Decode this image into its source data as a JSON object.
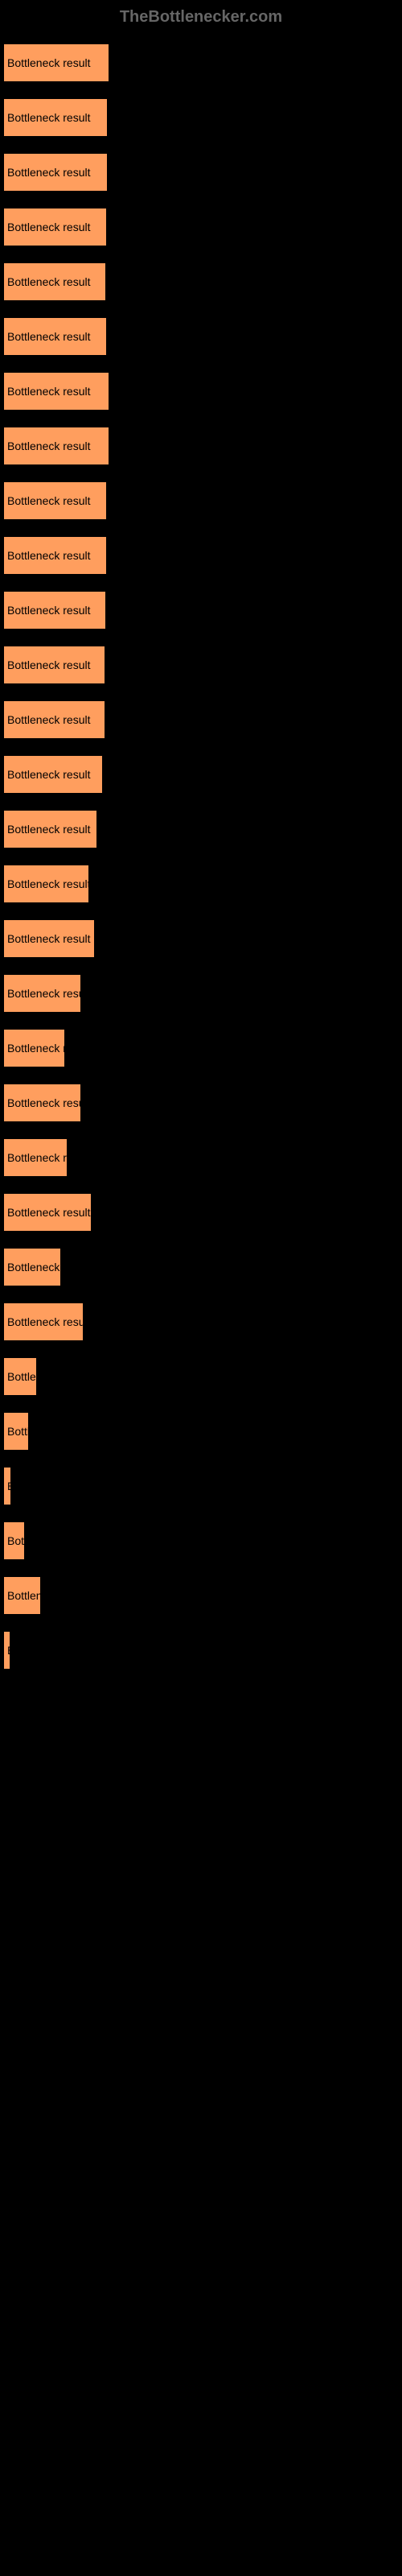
{
  "header": {
    "site_name": "TheBottlenecker.com"
  },
  "chart": {
    "type": "bar",
    "background_color": "#000000",
    "bar_color": "#ff9e5e",
    "label_color": "#000000",
    "header_color": "#666666",
    "max_width": 490,
    "bars": [
      {
        "label": "Bottleneck result",
        "width": 130
      },
      {
        "label": "Bottleneck result",
        "width": 128
      },
      {
        "label": "Bottleneck result",
        "width": 128
      },
      {
        "label": "Bottleneck result",
        "width": 127
      },
      {
        "label": "Bottleneck result",
        "width": 126
      },
      {
        "label": "Bottleneck result",
        "width": 127
      },
      {
        "label": "Bottleneck result",
        "width": 130
      },
      {
        "label": "Bottleneck result",
        "width": 130
      },
      {
        "label": "Bottleneck result",
        "width": 127
      },
      {
        "label": "Bottleneck result",
        "width": 127
      },
      {
        "label": "Bottleneck result",
        "width": 126
      },
      {
        "label": "Bottleneck result",
        "width": 125
      },
      {
        "label": "Bottleneck result",
        "width": 125
      },
      {
        "label": "Bottleneck result",
        "width": 122
      },
      {
        "label": "Bottleneck result",
        "width": 115
      },
      {
        "label": "Bottleneck result",
        "width": 105
      },
      {
        "label": "Bottleneck result",
        "width": 112
      },
      {
        "label": "Bottleneck result",
        "width": 95
      },
      {
        "label": "Bottleneck result",
        "width": 75
      },
      {
        "label": "Bottleneck result",
        "width": 95
      },
      {
        "label": "Bottleneck result",
        "width": 78
      },
      {
        "label": "Bottleneck result",
        "width": 108
      },
      {
        "label": "Bottleneck result",
        "width": 70
      },
      {
        "label": "Bottleneck result",
        "width": 98
      },
      {
        "label": "Bottleneck result",
        "width": 40
      },
      {
        "label": "Bottleneck result",
        "width": 30
      },
      {
        "label": "Bottleneck result",
        "width": 8
      },
      {
        "label": "Bottleneck result",
        "width": 25
      },
      {
        "label": "Bottleneck result",
        "width": 45
      },
      {
        "label": "Bottleneck result",
        "width": 7
      }
    ]
  }
}
